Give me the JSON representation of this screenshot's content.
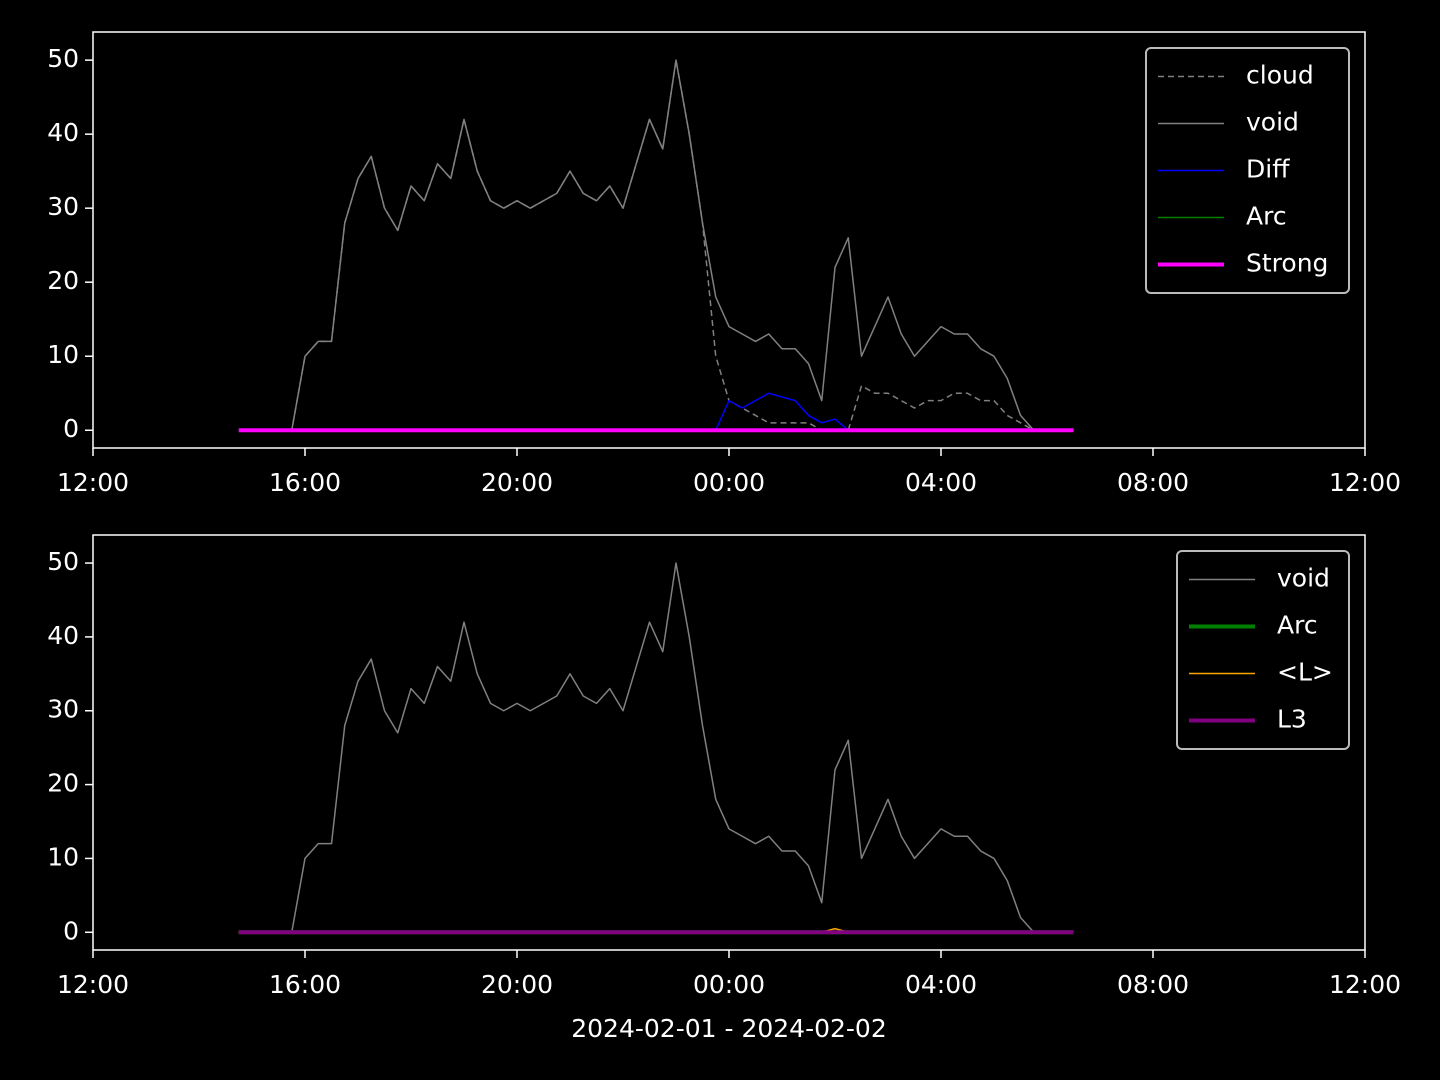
{
  "chart_data": [
    {
      "type": "line",
      "x": [
        14.75,
        15,
        15.25,
        15.5,
        15.75,
        16,
        16.25,
        16.5,
        16.75,
        17,
        17.25,
        17.5,
        17.75,
        18,
        18.25,
        18.5,
        18.75,
        19,
        19.25,
        19.5,
        19.75,
        20,
        20.25,
        20.5,
        20.75,
        21,
        21.25,
        21.5,
        21.75,
        22,
        22.25,
        22.5,
        22.75,
        23,
        23.25,
        23.5,
        23.75,
        24,
        24.25,
        24.5,
        24.75,
        25,
        25.25,
        25.5,
        25.75,
        26,
        26.25,
        26.5,
        26.75,
        27,
        27.25,
        27.5,
        27.75,
        28,
        28.25,
        28.5,
        28.75,
        29,
        29.25,
        29.5,
        29.75,
        30,
        30.25,
        30.5
      ],
      "series": [
        {
          "name": "cloud",
          "color": "#808080",
          "linestyle": "dashed",
          "linewidth": 1.5,
          "values": [
            0,
            0,
            0,
            0,
            0,
            10,
            12,
            12,
            28,
            34,
            37,
            30,
            27,
            33,
            31,
            36,
            34,
            42,
            35,
            31,
            30,
            31,
            30,
            31,
            32,
            35,
            32,
            31,
            33,
            30,
            36,
            42,
            38,
            50,
            40,
            28,
            10,
            4,
            3,
            2,
            1,
            1,
            1,
            1,
            0,
            0,
            0,
            6,
            5,
            5,
            4,
            3,
            4,
            4,
            5,
            5,
            4,
            4,
            2,
            1,
            0,
            0,
            0,
            0
          ]
        },
        {
          "name": "void",
          "color": "#808080",
          "linestyle": "solid",
          "linewidth": 1.5,
          "values": [
            0,
            0,
            0,
            0,
            0,
            10,
            12,
            12,
            28,
            34,
            37,
            30,
            27,
            33,
            31,
            36,
            34,
            42,
            35,
            31,
            30,
            31,
            30,
            31,
            32,
            35,
            32,
            31,
            33,
            30,
            36,
            42,
            38,
            50,
            40,
            28,
            18,
            14,
            13,
            12,
            13,
            11,
            11,
            9,
            4,
            22,
            26,
            10,
            14,
            18,
            13,
            10,
            12,
            14,
            13,
            13,
            11,
            10,
            7,
            2,
            0,
            0,
            0,
            0
          ]
        },
        {
          "name": "Diff",
          "color": "#0000ff",
          "linestyle": "solid",
          "linewidth": 1.5,
          "values": [
            0,
            0,
            0,
            0,
            0,
            0,
            0,
            0,
            0,
            0,
            0,
            0,
            0,
            0,
            0,
            0,
            0,
            0,
            0,
            0,
            0,
            0,
            0,
            0,
            0,
            0,
            0,
            0,
            0,
            0,
            0,
            0,
            0,
            0,
            0,
            0,
            0,
            4,
            3,
            4,
            5,
            4.5,
            4,
            2,
            1,
            1.5,
            0,
            0,
            0,
            0,
            0,
            0,
            0,
            0,
            0,
            0,
            0,
            0,
            0,
            0,
            0,
            0,
            0,
            0
          ]
        },
        {
          "name": "Arc",
          "color": "#008000",
          "linestyle": "solid",
          "linewidth": 1.5,
          "values": [
            0,
            0,
            0,
            0,
            0,
            0,
            0,
            0,
            0,
            0,
            0,
            0,
            0,
            0,
            0,
            0,
            0,
            0,
            0,
            0,
            0,
            0,
            0,
            0,
            0,
            0,
            0,
            0,
            0,
            0,
            0,
            0,
            0,
            0,
            0,
            0,
            0,
            0,
            0,
            0,
            0,
            0,
            0,
            0,
            0,
            0,
            0,
            0,
            0,
            0,
            0,
            0,
            0,
            0,
            0,
            0,
            0,
            0,
            0,
            0,
            0,
            0,
            0,
            0
          ]
        },
        {
          "name": "Strong",
          "color": "#ff00ff",
          "linestyle": "solid",
          "linewidth": 4,
          "values": [
            0,
            0,
            0,
            0,
            0,
            0,
            0,
            0,
            0,
            0,
            0,
            0,
            0,
            0,
            0,
            0,
            0,
            0,
            0,
            0,
            0,
            0,
            0,
            0,
            0,
            0,
            0,
            0,
            0,
            0,
            0,
            0,
            0,
            0,
            0,
            0,
            0,
            0,
            0,
            0,
            0,
            0,
            0,
            0,
            0,
            0,
            0,
            0,
            0,
            0,
            0,
            0,
            0,
            0,
            0,
            0,
            0,
            0,
            0,
            0,
            0,
            0,
            0,
            0
          ]
        }
      ],
      "xlim": [
        12,
        36
      ],
      "xticks": [
        {
          "value": 12,
          "label": "12:00"
        },
        {
          "value": 16,
          "label": "16:00"
        },
        {
          "value": 20,
          "label": "20:00"
        },
        {
          "value": 24,
          "label": "00:00"
        },
        {
          "value": 28,
          "label": "04:00"
        },
        {
          "value": 32,
          "label": "08:00"
        },
        {
          "value": 36,
          "label": "12:00"
        }
      ],
      "ylim": [
        -2.4,
        53.8
      ],
      "yticks": [
        0,
        10,
        20,
        30,
        40,
        50
      ],
      "legend": "upper right"
    },
    {
      "type": "line",
      "x": [
        14.75,
        15,
        15.25,
        15.5,
        15.75,
        16,
        16.25,
        16.5,
        16.75,
        17,
        17.25,
        17.5,
        17.75,
        18,
        18.25,
        18.5,
        18.75,
        19,
        19.25,
        19.5,
        19.75,
        20,
        20.25,
        20.5,
        20.75,
        21,
        21.25,
        21.5,
        21.75,
        22,
        22.25,
        22.5,
        22.75,
        23,
        23.25,
        23.5,
        23.75,
        24,
        24.25,
        24.5,
        24.75,
        25,
        25.25,
        25.5,
        25.75,
        26,
        26.25,
        26.5,
        26.75,
        27,
        27.25,
        27.5,
        27.75,
        28,
        28.25,
        28.5,
        28.75,
        29,
        29.25,
        29.5,
        29.75,
        30,
        30.25,
        30.5
      ],
      "series": [
        {
          "name": "void",
          "color": "#808080",
          "linestyle": "solid",
          "linewidth": 1.5,
          "values": [
            0,
            0,
            0,
            0,
            0,
            10,
            12,
            12,
            28,
            34,
            37,
            30,
            27,
            33,
            31,
            36,
            34,
            42,
            35,
            31,
            30,
            31,
            30,
            31,
            32,
            35,
            32,
            31,
            33,
            30,
            36,
            42,
            38,
            50,
            40,
            28,
            18,
            14,
            13,
            12,
            13,
            11,
            11,
            9,
            4,
            22,
            26,
            10,
            14,
            18,
            13,
            10,
            12,
            14,
            13,
            13,
            11,
            10,
            7,
            2,
            0,
            0,
            0,
            0
          ]
        },
        {
          "name": "Arc",
          "color": "#008000",
          "linestyle": "solid",
          "linewidth": 4,
          "values": [
            0,
            0,
            0,
            0,
            0,
            0,
            0,
            0,
            0,
            0,
            0,
            0,
            0,
            0,
            0,
            0,
            0,
            0,
            0,
            0,
            0,
            0,
            0,
            0,
            0,
            0,
            0,
            0,
            0,
            0,
            0,
            0,
            0,
            0,
            0,
            0,
            0,
            0,
            0,
            0,
            0,
            0,
            0,
            0,
            0,
            0,
            0,
            0,
            0,
            0,
            0,
            0,
            0,
            0,
            0,
            0,
            0,
            0,
            0,
            0,
            0,
            0,
            0,
            0
          ]
        },
        {
          "name": "<L>",
          "color": "#ffa500",
          "linestyle": "solid",
          "linewidth": 1.5,
          "values": [
            0,
            0,
            0,
            0,
            0,
            0,
            0,
            0,
            0,
            0,
            0,
            0,
            0,
            0,
            0,
            0,
            0,
            0,
            0,
            0,
            0,
            0,
            0,
            0,
            0,
            0,
            0,
            0,
            0,
            0,
            0,
            0,
            0,
            0,
            0,
            0,
            0,
            0,
            0,
            0,
            0,
            0,
            0,
            0,
            0,
            0.5,
            0,
            0,
            0,
            0,
            0,
            0,
            0,
            0,
            0,
            0,
            0,
            0,
            0,
            0,
            0,
            0,
            0,
            0
          ]
        },
        {
          "name": "L3",
          "color": "#800080",
          "linestyle": "solid",
          "linewidth": 4,
          "values": [
            0,
            0,
            0,
            0,
            0,
            0,
            0,
            0,
            0,
            0,
            0,
            0,
            0,
            0,
            0,
            0,
            0,
            0,
            0,
            0,
            0,
            0,
            0,
            0,
            0,
            0,
            0,
            0,
            0,
            0,
            0,
            0,
            0,
            0,
            0,
            0,
            0,
            0,
            0,
            0,
            0,
            0,
            0,
            0,
            0,
            0,
            0,
            0,
            0,
            0,
            0,
            0,
            0,
            0,
            0,
            0,
            0,
            0,
            0,
            0,
            0,
            0,
            0,
            0
          ]
        }
      ],
      "xlim": [
        12,
        36
      ],
      "xticks": [
        {
          "value": 12,
          "label": "12:00"
        },
        {
          "value": 16,
          "label": "16:00"
        },
        {
          "value": 20,
          "label": "20:00"
        },
        {
          "value": 24,
          "label": "00:00"
        },
        {
          "value": 28,
          "label": "04:00"
        },
        {
          "value": 32,
          "label": "08:00"
        },
        {
          "value": 36,
          "label": "12:00"
        }
      ],
      "ylim": [
        -2.4,
        53.8
      ],
      "yticks": [
        0,
        10,
        20,
        30,
        40,
        50
      ],
      "xlabel": "2024-02-01 - 2024-02-02",
      "legend": "upper right"
    }
  ]
}
